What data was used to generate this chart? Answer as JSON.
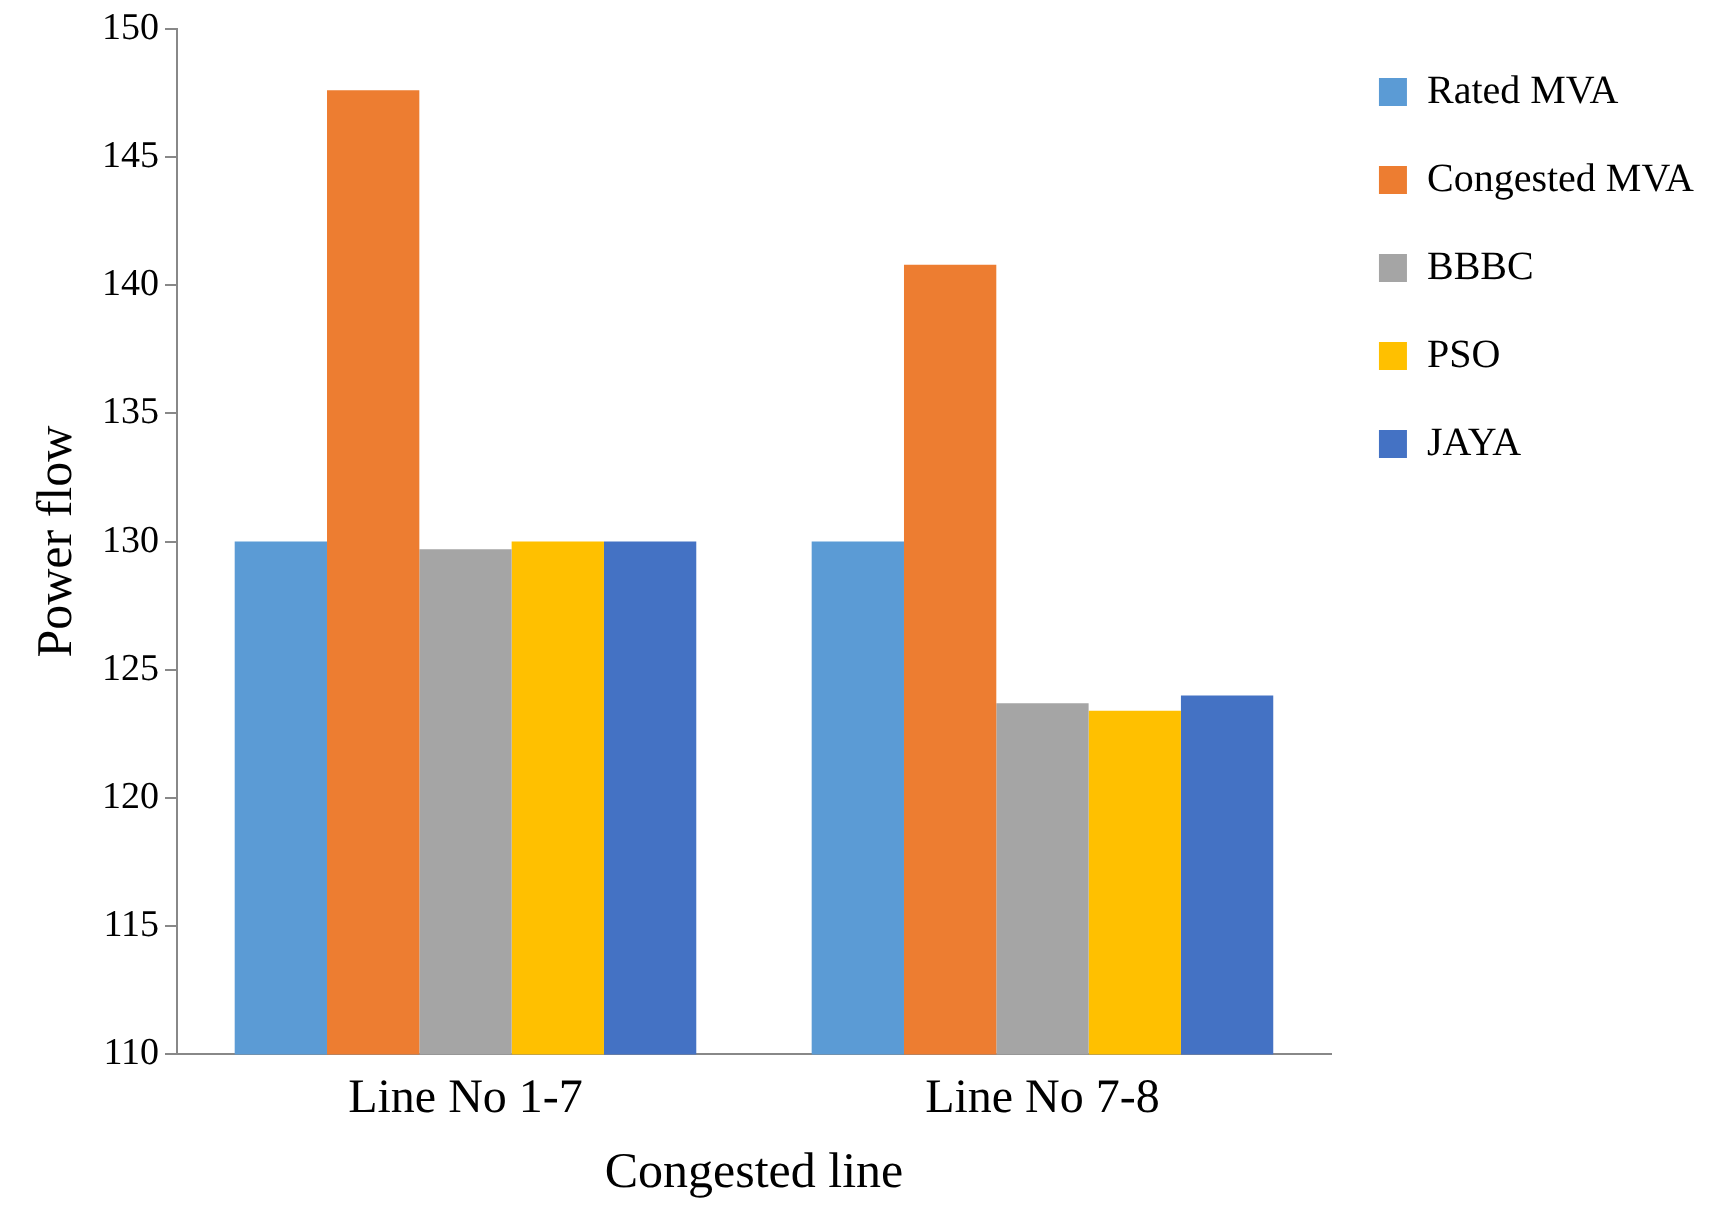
{
  "chart_data": {
    "type": "bar",
    "xlabel": "Congested line",
    "ylabel": "Power flow",
    "categories": [
      "Line No 1-7",
      "Line No 7-8"
    ],
    "series": [
      {
        "name": "Rated MVA",
        "color": "#5b9bd5",
        "values": [
          130,
          130
        ]
      },
      {
        "name": "Congested MVA",
        "color": "#ed7d31",
        "values": [
          147.6,
          140.8
        ]
      },
      {
        "name": "BBBC",
        "color": "#a5a5a5",
        "values": [
          129.7,
          123.7
        ]
      },
      {
        "name": "PSO",
        "color": "#ffc000",
        "values": [
          130,
          123.4
        ]
      },
      {
        "name": "JAYA",
        "color": "#4472c4",
        "values": [
          130,
          124
        ]
      }
    ],
    "ylim": [
      110,
      150
    ],
    "yticks": [
      110,
      115,
      120,
      125,
      130,
      135,
      140,
      145,
      150
    ],
    "grid": false,
    "legend": "top right"
  }
}
